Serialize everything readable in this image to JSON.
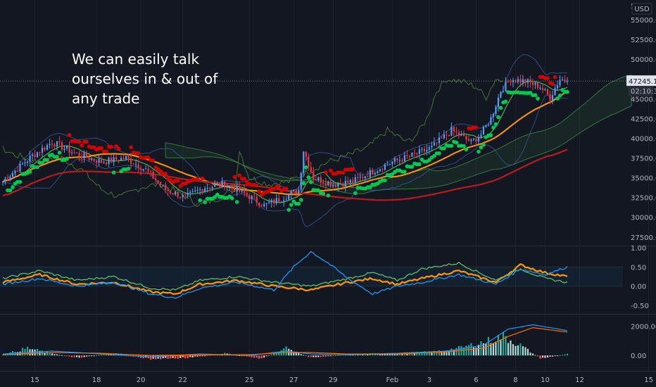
{
  "annotation": "We can easily talk\nourselves in & out of\nany trade",
  "currency": "USD",
  "price_label": "47245.14",
  "countdown": "02:10:37",
  "top_partial_label": "5",
  "colors": {
    "up": "#5b9cf6",
    "down": "#f23645",
    "sar_up": "#00c853",
    "sar_down": "#d50000",
    "ma_orange": "#ff9800",
    "ma_red": "#b71c1c",
    "ma_green": "#4caf50",
    "rsi_orange": "#ff9800",
    "rsi_green": "#66bb6a",
    "rsi_blue": "#2196f3",
    "macd_blue": "#2196f3",
    "macd_orange": "#ff6d00"
  },
  "chart_data": [
    {
      "type": "candlestick",
      "ylim": [
        26500,
        57500
      ],
      "y_ticks": [
        27500,
        30000,
        32500,
        35000,
        37500,
        40000,
        42500,
        45000,
        47500,
        50000,
        52500,
        55000
      ],
      "y_tick_labels": [
        "27500.00",
        "30000.00",
        "32500.00",
        "35000.00",
        "37500.00",
        "40000.00",
        "42500.00",
        "45000.00",
        "47500.00",
        "50000.00",
        "52500.00",
        "55000.00"
      ],
      "x_tick_labels": [
        "15",
        "18",
        "20",
        "22",
        "25",
        "27",
        "29",
        "Feb",
        "3",
        "6",
        "8",
        "10",
        "12",
        "15"
      ],
      "last_price": 47245.14,
      "anchors": [
        [
          0,
          34500
        ],
        [
          12,
          37800
        ],
        [
          20,
          39500
        ],
        [
          30,
          38000
        ],
        [
          40,
          37000
        ],
        [
          50,
          37500
        ],
        [
          58,
          36000
        ],
        [
          66,
          33500
        ],
        [
          74,
          32500
        ],
        [
          82,
          33800
        ],
        [
          90,
          34200
        ],
        [
          98,
          33000
        ],
        [
          106,
          31500
        ],
        [
          114,
          32500
        ],
        [
          120,
          33500
        ],
        [
          122,
          38500
        ],
        [
          126,
          35000
        ],
        [
          134,
          34200
        ],
        [
          142,
          34500
        ],
        [
          150,
          35800
        ],
        [
          158,
          37000
        ],
        [
          166,
          37800
        ],
        [
          174,
          38800
        ],
        [
          182,
          41000
        ],
        [
          190,
          39500
        ],
        [
          194,
          40500
        ],
        [
          198,
          42500
        ],
        [
          202,
          46000
        ],
        [
          206,
          47500
        ],
        [
          212,
          47200
        ],
        [
          218,
          46500
        ],
        [
          222,
          45200
        ],
        [
          226,
          47500
        ],
        [
          229,
          47245
        ]
      ]
    },
    {
      "type": "line",
      "name": "RSI",
      "ylim": [
        -0.7,
        1.0
      ],
      "y_ticks": [
        -0.5,
        0.0,
        0.5,
        1.0
      ],
      "y_tick_labels": [
        "-0.50",
        "0.00",
        "0.50",
        "1.00"
      ],
      "band": [
        0.0,
        0.5
      ],
      "series": [
        {
          "color": "orange",
          "x": [
            0,
            15,
            30,
            45,
            60,
            70,
            80,
            95,
            110,
            125,
            140,
            150,
            160,
            170,
            185,
            200,
            210,
            220,
            229
          ],
          "values": [
            0.1,
            0.3,
            0.05,
            0.1,
            -0.15,
            -0.2,
            0.05,
            0.15,
            0.0,
            -0.1,
            0.1,
            0.2,
            0.05,
            0.2,
            0.4,
            0.1,
            0.55,
            0.35,
            0.25
          ]
        },
        {
          "color": "green",
          "x": [
            0,
            15,
            30,
            45,
            60,
            70,
            80,
            95,
            110,
            125,
            140,
            150,
            160,
            170,
            185,
            200,
            210,
            220,
            229
          ],
          "values": [
            0.2,
            0.4,
            0.15,
            0.25,
            -0.05,
            -0.1,
            0.15,
            0.25,
            0.1,
            0.0,
            0.2,
            0.35,
            0.15,
            0.45,
            0.6,
            0.15,
            0.45,
            0.2,
            0.1
          ]
        },
        {
          "color": "blue",
          "x": [
            0,
            15,
            30,
            45,
            60,
            70,
            80,
            95,
            110,
            118,
            125,
            132,
            140,
            150,
            160,
            170,
            185,
            200,
            210,
            220,
            229
          ],
          "values": [
            0.05,
            0.2,
            0.0,
            0.1,
            -0.2,
            -0.3,
            -0.05,
            0.1,
            -0.1,
            0.5,
            0.9,
            0.6,
            0.2,
            -0.2,
            0.0,
            0.1,
            0.3,
            0.05,
            0.45,
            0.3,
            0.5
          ]
        }
      ]
    },
    {
      "type": "bar+line",
      "name": "MACD",
      "ylim": [
        -1000,
        2700
      ],
      "y_ticks": [
        0,
        2000
      ],
      "y_tick_labels": [
        "0.00",
        "2000.00"
      ],
      "histogram_anchors": [
        [
          0,
          50
        ],
        [
          10,
          500
        ],
        [
          18,
          200
        ],
        [
          30,
          -150
        ],
        [
          45,
          150
        ],
        [
          60,
          -250
        ],
        [
          75,
          -150
        ],
        [
          90,
          150
        ],
        [
          105,
          -200
        ],
        [
          115,
          500
        ],
        [
          125,
          -150
        ],
        [
          140,
          100
        ],
        [
          160,
          150
        ],
        [
          175,
          250
        ],
        [
          185,
          500
        ],
        [
          195,
          900
        ],
        [
          203,
          1300
        ],
        [
          210,
          700
        ],
        [
          218,
          -200
        ],
        [
          229,
          100
        ]
      ],
      "macd_line": {
        "x": [
          0,
          20,
          40,
          60,
          80,
          100,
          115,
          125,
          140,
          160,
          180,
          195,
          205,
          215,
          229
        ],
        "values": [
          100,
          300,
          100,
          -100,
          100,
          0,
          300,
          100,
          50,
          150,
          300,
          700,
          1800,
          2100,
          1700
        ]
      },
      "signal_line": {
        "x": [
          0,
          20,
          40,
          60,
          80,
          100,
          115,
          125,
          140,
          160,
          180,
          195,
          205,
          215,
          229
        ],
        "values": [
          50,
          200,
          150,
          0,
          50,
          50,
          200,
          200,
          100,
          100,
          250,
          500,
          1300,
          1900,
          1600
        ]
      }
    }
  ]
}
